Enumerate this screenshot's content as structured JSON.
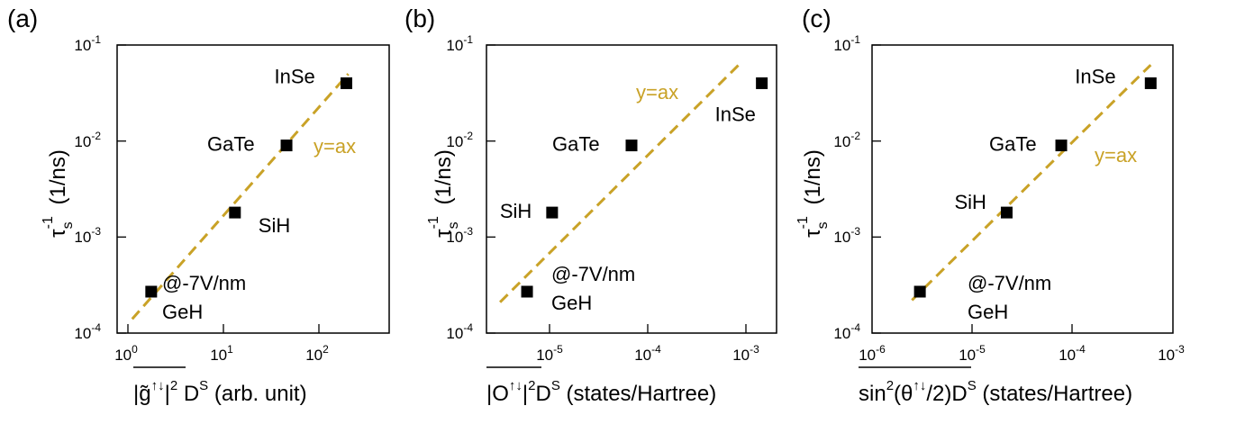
{
  "line_color": "#C9A227",
  "marker_color": "#000000",
  "chart_data": [
    {
      "type": "scatter",
      "panel_label": "(a)",
      "xlabel": "|g̃↑↓|² Dˢ (arb. unit)",
      "ylabel": "τs⁻¹ (1/ns)",
      "xscale": "log",
      "yscale": "log",
      "xlim": [
        0.4,
        600
      ],
      "ylim": [
        0.0001,
        0.1
      ],
      "xticks": [
        "10^0",
        "10^1",
        "10^2"
      ],
      "yticks": [
        "10^-4",
        "10^-3",
        "10^-2",
        "10^-1"
      ],
      "grid": false,
      "points": [
        {
          "label": "GeH",
          "x": 1.0,
          "y": 0.00027
        },
        {
          "label": "SiH",
          "x": 9.5,
          "y": 0.0018
        },
        {
          "label": "GaTe",
          "x": 38,
          "y": 0.009
        },
        {
          "label": "InSe",
          "x": 190,
          "y": 0.04
        }
      ],
      "fit": {
        "label": "y=ax",
        "x": [
          0.6,
          200
        ],
        "y": [
          0.00014,
          0.05
        ]
      },
      "annotation": "@-7V/nm"
    },
    {
      "type": "scatter",
      "panel_label": "(b)",
      "xlabel": "|O↑↓|²Dˢ (states/Hartree)",
      "ylabel": "τs⁻¹ (1/ns)",
      "xscale": "log",
      "yscale": "log",
      "xlim": [
        1.8e-06,
        0.002
      ],
      "ylim": [
        0.0001,
        0.1
      ],
      "xticks": [
        "10^-5",
        "10^-4",
        "10^-3"
      ],
      "yticks": [
        "10^-4",
        "10^-3",
        "10^-2",
        "10^-1"
      ],
      "grid": false,
      "points": [
        {
          "label": "GeH",
          "x": 4.8e-06,
          "y": 0.00027
        },
        {
          "label": "SiH",
          "x": 8.8e-06,
          "y": 0.0018
        },
        {
          "label": "GaTe",
          "x": 6e-05,
          "y": 0.009
        },
        {
          "label": "InSe",
          "x": 0.0014,
          "y": 0.04
        }
      ],
      "fit": {
        "label": "y=ax",
        "x": [
          2.5e-06,
          0.0008
        ],
        "y": [
          0.00021,
          0.062
        ]
      },
      "annotation": "@-7V/nm"
    },
    {
      "type": "scatter",
      "panel_label": "(c)",
      "xlabel": "sin²(θ↑↓/2)Dˢ (states/Hartree)",
      "ylabel": "τs⁻¹ (1/ns)",
      "xscale": "log",
      "yscale": "log",
      "xlim": [
        1e-06,
        0.001
      ],
      "ylim": [
        0.0001,
        0.1
      ],
      "xticks": [
        "10^-6",
        "10^-5",
        "10^-4",
        "10^-3"
      ],
      "yticks": [
        "10^-4",
        "10^-3",
        "10^-2",
        "10^-1"
      ],
      "grid": false,
      "points": [
        {
          "label": "GeH",
          "x": 3e-06,
          "y": 0.00027
        },
        {
          "label": "SiH",
          "x": 2.2e-05,
          "y": 0.0018
        },
        {
          "label": "GaTe",
          "x": 7.7e-05,
          "y": 0.009
        },
        {
          "label": "InSe",
          "x": 0.0006,
          "y": 0.04
        }
      ],
      "fit": {
        "label": "y=ax",
        "x": [
          2.5e-06,
          0.0006
        ],
        "y": [
          0.00022,
          0.062
        ]
      },
      "annotation": "@-7V/nm"
    }
  ]
}
